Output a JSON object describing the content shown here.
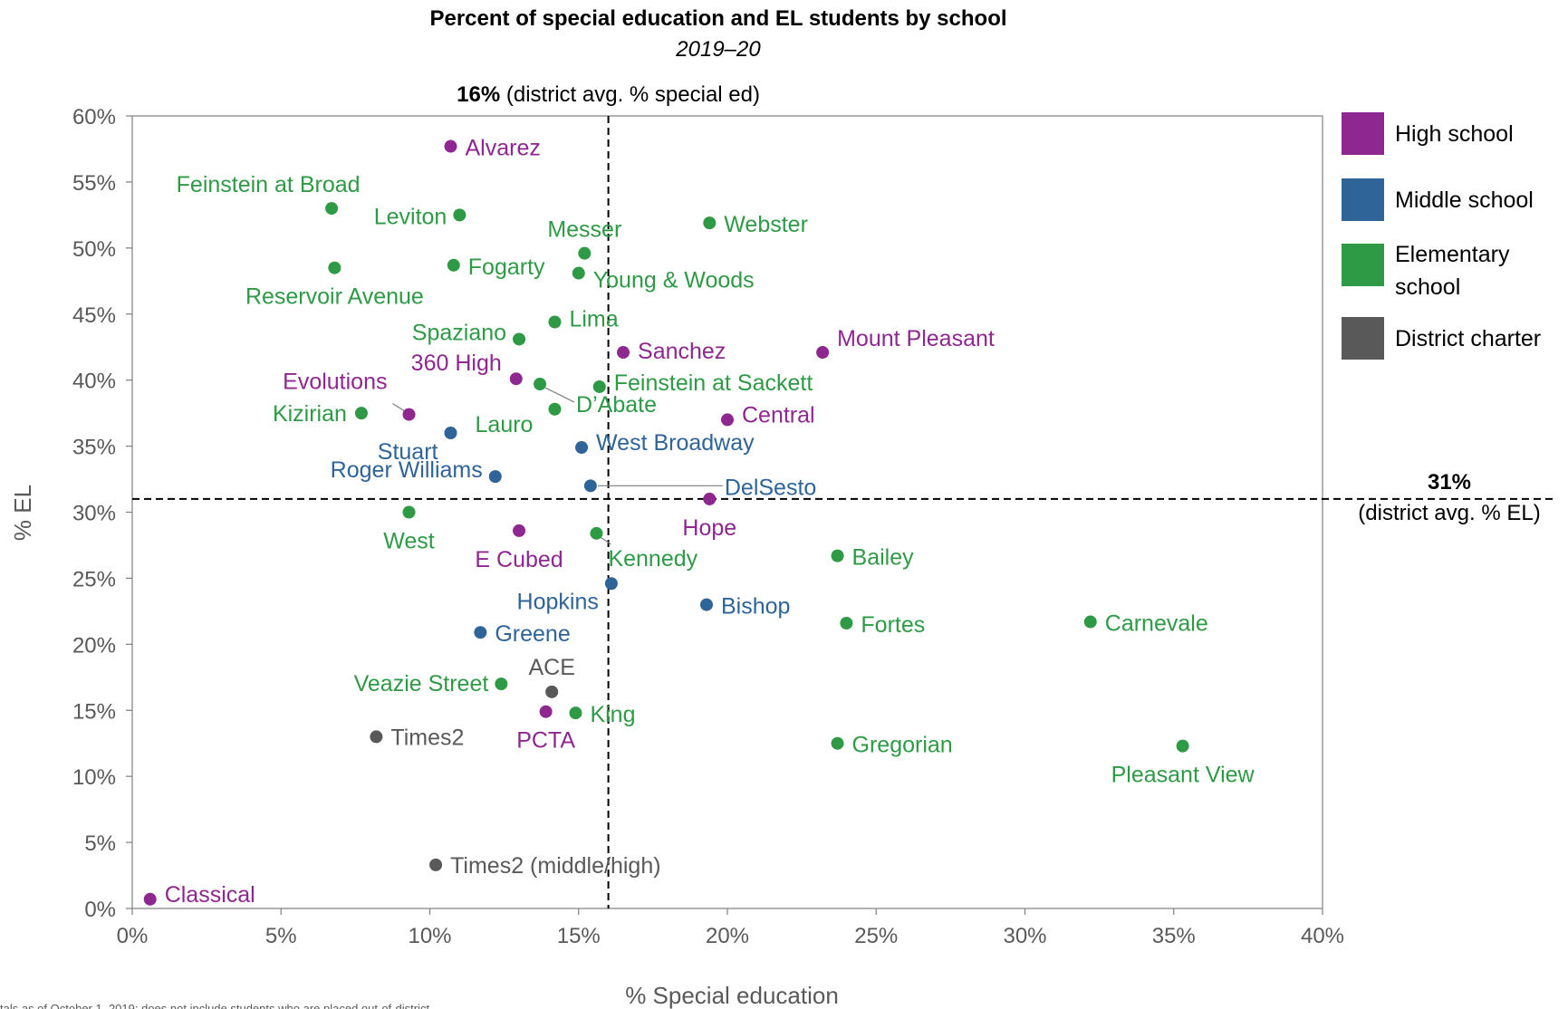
{
  "colors": {
    "high": "#8e278f",
    "middle": "#2f6498",
    "elementary": "#2f9a46",
    "charter": "#595959",
    "axis_text": "#595959",
    "refline": "#000000"
  },
  "chart_data": {
    "type": "scatter",
    "title": "Percent of special education and EL students by school",
    "subtitle": "2019–20",
    "xlabel": "% Special education",
    "ylabel": "% EL",
    "xlim": [
      0,
      40
    ],
    "ylim": [
      0,
      60
    ],
    "x_ticks": [
      0,
      5,
      10,
      15,
      20,
      25,
      30,
      35,
      40
    ],
    "y_ticks": [
      0,
      5,
      10,
      15,
      20,
      25,
      30,
      35,
      40,
      45,
      50,
      55,
      60
    ],
    "x_tick_labels": [
      "0%",
      "5%",
      "10%",
      "15%",
      "20%",
      "25%",
      "30%",
      "35%",
      "40%"
    ],
    "y_tick_labels": [
      "0%",
      "5%",
      "10%",
      "15%",
      "20%",
      "25%",
      "30%",
      "35%",
      "40%",
      "45%",
      "50%",
      "55%",
      "60%"
    ],
    "grid": false,
    "legend_position": "right",
    "legend": [
      {
        "key": "high",
        "label": "High school"
      },
      {
        "key": "middle",
        "label": "Middle school"
      },
      {
        "key": "elementary",
        "label": "Elementary school"
      },
      {
        "key": "charter",
        "label": "District charter"
      }
    ],
    "reference_lines": {
      "vertical": {
        "x": 16,
        "bold": "16%",
        "text": " (district avg. % special ed)"
      },
      "horizontal": {
        "y": 31,
        "bold": "31%",
        "text": "(district avg. % EL)"
      }
    },
    "footnote": "tals as of October 1, 2019; does not include students who are placed out-of-district",
    "points": [
      {
        "name": "Alvarez",
        "type": "high",
        "x": 10.7,
        "y": 57.7
      },
      {
        "name": "Classical",
        "type": "high",
        "x": 0.6,
        "y": 0.7
      },
      {
        "name": "Sanchez",
        "type": "high",
        "x": 16.5,
        "y": 42.1
      },
      {
        "name": "Mount Pleasant",
        "type": "high",
        "x": 23.2,
        "y": 42.1
      },
      {
        "name": "360 High",
        "type": "high",
        "x": 12.9,
        "y": 40.1
      },
      {
        "name": "Evolutions",
        "type": "high",
        "x": 9.3,
        "y": 37.4
      },
      {
        "name": "Central",
        "type": "high",
        "x": 20.0,
        "y": 37.0
      },
      {
        "name": "Hope",
        "type": "high",
        "x": 19.4,
        "y": 31.0
      },
      {
        "name": "E Cubed",
        "type": "high",
        "x": 13.0,
        "y": 28.6
      },
      {
        "name": "PCTA",
        "type": "high",
        "x": 13.9,
        "y": 14.9
      },
      {
        "name": "Stuart",
        "type": "middle",
        "x": 10.7,
        "y": 36.0
      },
      {
        "name": "West Broadway",
        "type": "middle",
        "x": 15.1,
        "y": 34.9
      },
      {
        "name": "Roger Williams",
        "type": "middle",
        "x": 12.2,
        "y": 32.7
      },
      {
        "name": "DelSesto",
        "type": "middle",
        "x": 15.4,
        "y": 32.0
      },
      {
        "name": "Hopkins",
        "type": "middle",
        "x": 16.1,
        "y": 24.6
      },
      {
        "name": "Bishop",
        "type": "middle",
        "x": 19.3,
        "y": 23.0
      },
      {
        "name": "Greene",
        "type": "middle",
        "x": 11.7,
        "y": 20.9
      },
      {
        "name": "Feinstein at Broad",
        "type": "elementary",
        "x": 6.7,
        "y": 53.0
      },
      {
        "name": "Leviton",
        "type": "elementary",
        "x": 11.0,
        "y": 52.5
      },
      {
        "name": "Webster",
        "type": "elementary",
        "x": 19.4,
        "y": 51.9
      },
      {
        "name": "Messer",
        "type": "elementary",
        "x": 15.2,
        "y": 49.6
      },
      {
        "name": "Fogarty",
        "type": "elementary",
        "x": 10.8,
        "y": 48.7
      },
      {
        "name": "Reservoir Avenue",
        "type": "elementary",
        "x": 6.8,
        "y": 48.5
      },
      {
        "name": "Young & Woods",
        "type": "elementary",
        "x": 15.0,
        "y": 48.1
      },
      {
        "name": "Lima",
        "type": "elementary",
        "x": 14.2,
        "y": 44.4
      },
      {
        "name": "Spaziano",
        "type": "elementary",
        "x": 13.0,
        "y": 43.1
      },
      {
        "name": "D’Abate",
        "type": "elementary",
        "x": 13.7,
        "y": 39.7
      },
      {
        "name": "Feinstein at Sackett",
        "type": "elementary",
        "x": 15.7,
        "y": 39.5
      },
      {
        "name": "Kizirian",
        "type": "elementary",
        "x": 7.7,
        "y": 37.5
      },
      {
        "name": "Lauro",
        "type": "elementary",
        "x": 14.2,
        "y": 37.8
      },
      {
        "name": "West",
        "type": "elementary",
        "x": 9.3,
        "y": 30.0
      },
      {
        "name": "Kennedy",
        "type": "elementary",
        "x": 15.6,
        "y": 28.4
      },
      {
        "name": "Bailey",
        "type": "elementary",
        "x": 23.7,
        "y": 26.7
      },
      {
        "name": "Fortes",
        "type": "elementary",
        "x": 24.0,
        "y": 21.6
      },
      {
        "name": "Carnevale",
        "type": "elementary",
        "x": 32.2,
        "y": 21.7
      },
      {
        "name": "Veazie Street",
        "type": "elementary",
        "x": 12.4,
        "y": 17.0
      },
      {
        "name": "King",
        "type": "elementary",
        "x": 14.9,
        "y": 14.8
      },
      {
        "name": "Gregorian",
        "type": "elementary",
        "x": 23.7,
        "y": 12.5
      },
      {
        "name": "Pleasant View",
        "type": "elementary",
        "x": 35.3,
        "y": 12.3
      },
      {
        "name": "ACE",
        "type": "charter",
        "x": 14.1,
        "y": 16.4
      },
      {
        "name": "Times2",
        "type": "charter",
        "x": 8.2,
        "y": 13.0
      },
      {
        "name": "Times2 (middle/high)",
        "type": "charter",
        "x": 10.2,
        "y": 3.3
      }
    ]
  }
}
